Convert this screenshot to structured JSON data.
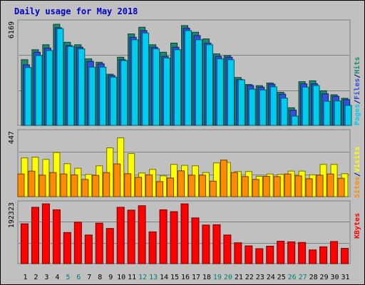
{
  "chart_data": {
    "type": "bar",
    "title": "Daily usage for May 2018",
    "x": [
      "1",
      "2",
      "3",
      "4",
      "5",
      "6",
      "7",
      "8",
      "9",
      "10",
      "11",
      "12",
      "13",
      "14",
      "15",
      "16",
      "17",
      "18",
      "19",
      "20",
      "21",
      "22",
      "23",
      "24",
      "25",
      "26",
      "27",
      "28",
      "29",
      "30",
      "31"
    ],
    "weekend_days": [
      "5",
      "6",
      "12",
      "13",
      "19",
      "20",
      "26",
      "27"
    ],
    "panels": {
      "hits_files_pages": {
        "max_label": "6169",
        "ymax": 6169,
        "legend": [
          "Pages",
          "/",
          "Files",
          "/",
          "Hits"
        ],
        "series": [
          {
            "name": "Hits",
            "color": "#1c8a6e",
            "values": [
              3950,
              4550,
              4850,
              6080,
              5000,
              4850,
              4000,
              3800,
              3080,
              4100,
              5500,
              5900,
              4850,
              4400,
              4950,
              6000,
              5600,
              5200,
              4300,
              4200,
              2880,
              2460,
              2390,
              2550,
              1990,
              1060,
              2630,
              2680,
              2080,
              1840,
              1630
            ]
          },
          {
            "name": "Files",
            "color": "#3050d8",
            "values": [
              3640,
              4400,
              4650,
              5870,
              4800,
              4700,
              3850,
              3700,
              3000,
              3950,
              5300,
              5700,
              4700,
              4150,
              4700,
              5850,
              5400,
              4950,
              4150,
              4100,
              2760,
              2400,
              2300,
              2480,
              1880,
              920,
              2500,
              2500,
              1900,
              1750,
              1550
            ]
          },
          {
            "name": "Pages",
            "color": "#00ccee",
            "values": [
              3480,
              4200,
              4500,
              5820,
              4750,
              4600,
              3500,
              3500,
              2900,
              3900,
              5150,
              5550,
              4600,
              4050,
              4550,
              5700,
              5150,
              4850,
              4000,
              3950,
              2740,
              2180,
              2130,
              2320,
              1640,
              560,
              2300,
              2400,
              1450,
              1470,
              1200
            ]
          }
        ]
      },
      "visits_sites": {
        "max_label": "447",
        "ymax": 447,
        "legend": [
          "Sites",
          "/",
          "Visits"
        ],
        "series": [
          {
            "name": "Visits",
            "color": "#ffff00",
            "values": [
              270,
              275,
              260,
              308,
              230,
              198,
              155,
              215,
              340,
              410,
              300,
              165,
              190,
              145,
              225,
              218,
              215,
              168,
              235,
              238,
              175,
              175,
              142,
              158,
              155,
              178,
              178,
              152,
              225,
              225,
              160
            ]
          },
          {
            "name": "Sites",
            "color": "#ff8c00",
            "values": [
              158,
              178,
              150,
              168,
              158,
              152,
              120,
              148,
              168,
              228,
              160,
              135,
              152,
              105,
              130,
              180,
              150,
              150,
              108,
              255,
              168,
              140,
              120,
              142,
              140,
              158,
              145,
              125,
              150,
              158,
              128
            ]
          }
        ]
      },
      "kbytes": {
        "max_label": "192323",
        "ymax": 192323,
        "legend": [
          "KBytes"
        ],
        "series": [
          {
            "name": "KBytes",
            "color": "#ff0000",
            "values": [
              128000,
              181000,
              192000,
              173000,
              100000,
              133000,
              92000,
              130000,
              113000,
              181000,
              172000,
              186000,
              102000,
              173000,
              167000,
              192000,
              147000,
              124000,
              125000,
              92000,
              67000,
              57000,
              48000,
              56000,
              72000,
              70000,
              68000,
              44000,
              54000,
              71000,
              49000
            ]
          }
        ]
      }
    }
  }
}
